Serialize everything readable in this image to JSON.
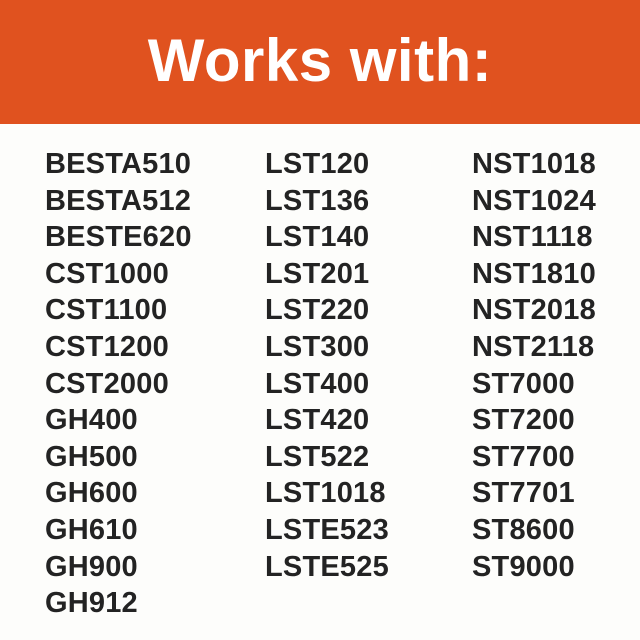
{
  "header": {
    "title": "Works with:"
  },
  "theme": {
    "accent": "#E0521F",
    "header_text": "#FFFFFF",
    "text": "#232323",
    "background": "#FDFDFB"
  },
  "columns": [
    {
      "items": [
        "BESTA510",
        "BESTA512",
        "BESTE620",
        "CST1000",
        "CST1100",
        "CST1200",
        "CST2000",
        "GH400",
        "GH500",
        "GH600",
        "GH610",
        "GH900",
        "GH912"
      ]
    },
    {
      "items": [
        "LST120",
        "LST136",
        "LST140",
        "LST201",
        "LST220",
        "LST300",
        "LST400",
        "LST420",
        "LST522",
        "LST1018",
        "LSTE523",
        "LSTE525"
      ]
    },
    {
      "items": [
        "NST1018",
        "NST1024",
        "NST1118",
        "NST1810",
        "NST2018",
        "NST2118",
        "ST7000",
        "ST7200",
        "ST7700",
        "ST7701",
        "ST8600",
        "ST9000"
      ]
    }
  ]
}
